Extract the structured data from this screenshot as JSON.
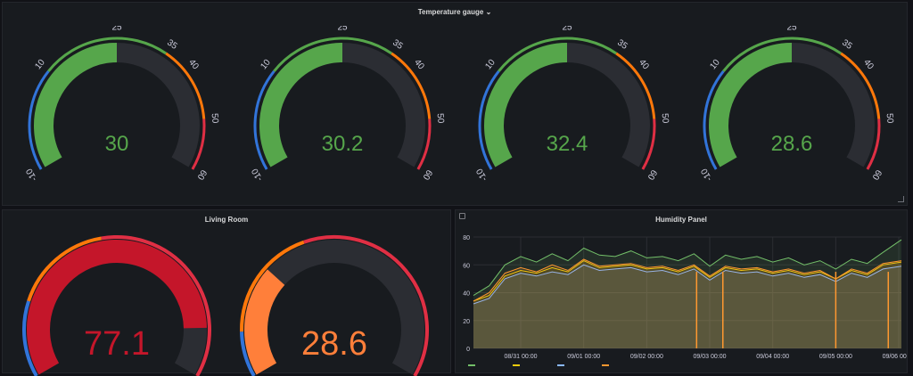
{
  "top_panel": {
    "title": "Temperature gauge",
    "chevron": "⌄"
  },
  "temp_gauges": {
    "min": -10,
    "max": 60,
    "scale_labels": [
      "-10",
      "10",
      "25",
      "35",
      "40",
      "50",
      "60"
    ],
    "scale_values": [
      -10,
      10,
      25,
      35,
      40,
      50,
      60
    ],
    "thresholds": [
      {
        "from": -10,
        "to": 10,
        "color": "#3274d9"
      },
      {
        "from": 10,
        "to": 35,
        "color": "#56a64b"
      },
      {
        "from": 35,
        "to": 50,
        "color": "#ff780a"
      },
      {
        "from": 50,
        "to": 60,
        "color": "#e02f44"
      }
    ],
    "fill_value": 25,
    "fill_color": "#56a64b",
    "values": [
      "30",
      "30.2",
      "32.4",
      "28.6"
    ]
  },
  "living_room": {
    "title": "Living Room",
    "gauges": [
      {
        "value": "77.1",
        "fraction": 0.87,
        "color": "#c4162a",
        "bands": [
          {
            "from": 0,
            "to": 0.2,
            "color": "#3274d9"
          },
          {
            "from": 0.2,
            "to": 0.46,
            "color": "#ff780a"
          },
          {
            "from": 0.46,
            "to": 1.0,
            "color": "#e02f44"
          }
        ]
      },
      {
        "value": "28.6",
        "fraction": 0.3,
        "color": "#ff7f3a",
        "bands": [
          {
            "from": 0,
            "to": 0.12,
            "color": "#3274d9"
          },
          {
            "from": 0.12,
            "to": 0.42,
            "color": "#ff780a"
          },
          {
            "from": 0.42,
            "to": 1.0,
            "color": "#e02f44"
          }
        ]
      }
    ]
  },
  "humidity": {
    "title": "Humidity Panel",
    "legend_colors": [
      "#73bf69",
      "#f2cc0c",
      "#8ab8ff",
      "#ff9830"
    ]
  },
  "chart_data": {
    "type": "line",
    "title": "Humidity Panel",
    "ylim": [
      0,
      80
    ],
    "yticks": [
      "0",
      "20",
      "40",
      "60",
      "80"
    ],
    "ytick_values": [
      0,
      20,
      40,
      60,
      80
    ],
    "xtick_labels": [
      "08/31 00:00",
      "09/01 00:00",
      "09/02 00:00",
      "09/03 00:00",
      "09/04 00:00",
      "09/05 00:00",
      "09/06 00:00"
    ],
    "xlim": [
      "08/30 06:00",
      "09/06 00:30"
    ],
    "xticks_pos_hours": [
      18,
      42,
      66,
      90,
      114,
      138,
      162
    ],
    "xlim_hours": [
      0,
      163
    ],
    "grid": true,
    "series": [
      {
        "color": "#73bf69",
        "x": [
          0,
          6,
          12,
          18,
          24,
          30,
          36,
          42,
          48,
          54,
          60,
          66,
          72,
          78,
          84,
          90,
          96,
          102,
          108,
          114,
          120,
          126,
          132,
          138,
          144,
          150,
          156,
          163
        ],
        "values": [
          38,
          45,
          60,
          66,
          62,
          68,
          63,
          72,
          67,
          66,
          70,
          65,
          66,
          63,
          68,
          59,
          67,
          64,
          66,
          62,
          65,
          60,
          63,
          57,
          64,
          61,
          69,
          78
        ]
      },
      {
        "color": "#f2cc0c",
        "x": [
          0,
          6,
          12,
          18,
          24,
          30,
          36,
          42,
          48,
          54,
          60,
          66,
          72,
          78,
          84,
          90,
          96,
          102,
          108,
          114,
          120,
          126,
          132,
          138,
          144,
          150,
          156,
          163
        ],
        "values": [
          34,
          38,
          52,
          56,
          54,
          58,
          55,
          63,
          58,
          59,
          60,
          57,
          58,
          55,
          59,
          51,
          58,
          56,
          57,
          54,
          56,
          53,
          55,
          50,
          56,
          53,
          60,
          62
        ]
      },
      {
        "color": "#8ab8ff",
        "x": [
          0,
          6,
          12,
          18,
          24,
          30,
          36,
          42,
          48,
          54,
          60,
          66,
          72,
          78,
          84,
          90,
          96,
          102,
          108,
          114,
          120,
          126,
          132,
          138,
          144,
          150,
          156,
          163
        ],
        "values": [
          32,
          36,
          50,
          54,
          52,
          55,
          53,
          60,
          56,
          57,
          58,
          55,
          56,
          53,
          57,
          49,
          56,
          54,
          55,
          52,
          54,
          51,
          53,
          48,
          54,
          51,
          57,
          59
        ]
      },
      {
        "color": "#ff9830",
        "x": [
          0,
          6,
          12,
          18,
          24,
          30,
          36,
          42,
          48,
          54,
          60,
          66,
          72,
          78,
          84,
          90,
          96,
          102,
          108,
          114,
          120,
          126,
          132,
          138,
          144,
          150,
          156,
          163
        ],
        "values": [
          34,
          40,
          54,
          58,
          55,
          60,
          56,
          64,
          59,
          60,
          61,
          58,
          59,
          56,
          60,
          52,
          59,
          57,
          58,
          55,
          57,
          54,
          56,
          50,
          57,
          54,
          61,
          63
        ]
      }
    ],
    "drops": [
      {
        "x": 85,
        "series": 3
      },
      {
        "x": 95,
        "series": 3
      },
      {
        "x": 138,
        "series": 3
      },
      {
        "x": 158,
        "series": 3
      }
    ]
  }
}
